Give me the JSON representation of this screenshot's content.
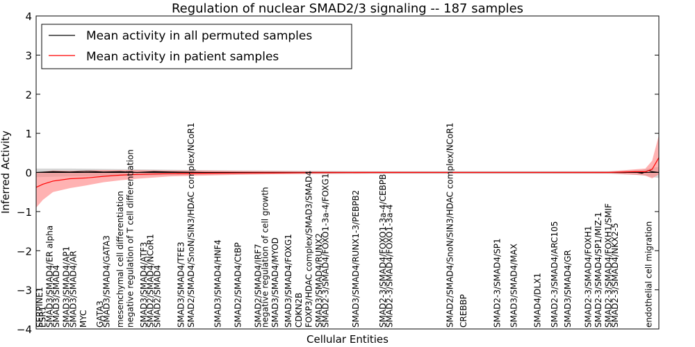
{
  "chart_data": {
    "type": "line",
    "title": "Regulation of nuclear SMAD2/3 signaling -- 187 samples",
    "xlabel": "Cellular Entities",
    "ylabel": "Inferred Activity",
    "ylim": [
      -4,
      4
    ],
    "yticks": [
      -4,
      -3,
      -2,
      -1,
      0,
      1,
      2,
      3,
      4
    ],
    "ytick_labels": [
      "−4",
      "−3",
      "−2",
      "−1",
      "0",
      "1",
      "2",
      "3",
      "4"
    ],
    "grid": false,
    "legend_position": "upper-left",
    "legend": [
      {
        "name": "Mean activity in all permuted samples",
        "color": "#000000"
      },
      {
        "name": "Mean activity in patient samples",
        "color": "#ff0000"
      }
    ],
    "colors": {
      "permuted": "#000000",
      "patient": "#ff0000",
      "permuted_band": "#c8c8c8",
      "patient_band": "#ff7f7f"
    },
    "entity_count": 186,
    "series": [
      {
        "name": "Mean activity in patient samples",
        "points": [
          [
            0,
            -0.38
          ],
          [
            2,
            -0.3
          ],
          [
            5,
            -0.22
          ],
          [
            10,
            -0.16
          ],
          [
            15,
            -0.14
          ],
          [
            20,
            -0.1
          ],
          [
            25,
            -0.07
          ],
          [
            30,
            -0.05
          ],
          [
            40,
            -0.03
          ],
          [
            50,
            -0.02
          ],
          [
            60,
            -0.015
          ],
          [
            70,
            -0.01
          ],
          [
            80,
            -0.005
          ],
          [
            100,
            0
          ],
          [
            120,
            0
          ],
          [
            150,
            0
          ],
          [
            170,
            0
          ],
          [
            178,
            0.02
          ],
          [
            181,
            0.02
          ],
          [
            183,
            0.08
          ],
          [
            185,
            0.38
          ]
        ],
        "band_upper": [
          [
            0,
            0.0
          ],
          [
            2,
            0.02
          ],
          [
            5,
            0.05
          ],
          [
            10,
            0.04
          ],
          [
            15,
            0.05
          ],
          [
            20,
            0.06
          ],
          [
            25,
            0.06
          ],
          [
            30,
            0.06
          ],
          [
            40,
            0.05
          ],
          [
            50,
            0.05
          ],
          [
            60,
            0.04
          ],
          [
            70,
            0.035
          ],
          [
            80,
            0.03
          ],
          [
            100,
            0.025
          ],
          [
            120,
            0.02
          ],
          [
            150,
            0.02
          ],
          [
            170,
            0.025
          ],
          [
            178,
            0.08
          ],
          [
            181,
            0.1
          ],
          [
            183,
            0.3
          ],
          [
            185,
            0.95
          ]
        ],
        "band_lower": [
          [
            0,
            -0.9
          ],
          [
            2,
            -0.7
          ],
          [
            5,
            -0.5
          ],
          [
            10,
            -0.4
          ],
          [
            15,
            -0.33
          ],
          [
            20,
            -0.25
          ],
          [
            25,
            -0.2
          ],
          [
            30,
            -0.16
          ],
          [
            40,
            -0.1
          ],
          [
            50,
            -0.08
          ],
          [
            60,
            -0.06
          ],
          [
            70,
            -0.045
          ],
          [
            80,
            -0.035
          ],
          [
            100,
            -0.025
          ],
          [
            120,
            -0.02
          ],
          [
            150,
            -0.02
          ],
          [
            170,
            -0.025
          ],
          [
            178,
            -0.06
          ],
          [
            181,
            -0.08
          ],
          [
            183,
            -0.15
          ],
          [
            185,
            -0.05
          ]
        ]
      },
      {
        "name": "Mean activity in all permuted samples",
        "points": [
          [
            0,
            0.0
          ],
          [
            5,
            0.02
          ],
          [
            10,
            0.01
          ],
          [
            15,
            0.03
          ],
          [
            20,
            0.01
          ],
          [
            25,
            0.02
          ],
          [
            30,
            0.0
          ],
          [
            35,
            0.02
          ],
          [
            40,
            0.01
          ],
          [
            50,
            0.0
          ],
          [
            60,
            0.0
          ],
          [
            70,
            0.0
          ],
          [
            100,
            0.0
          ],
          [
            150,
            0.0
          ],
          [
            175,
            0.0
          ],
          [
            178,
            0.01
          ],
          [
            180,
            -0.02
          ],
          [
            182,
            0.05
          ],
          [
            183,
            0.02
          ],
          [
            185,
            0.0
          ]
        ],
        "band_upper": [
          [
            0,
            0.1
          ],
          [
            10,
            0.1
          ],
          [
            20,
            0.09
          ],
          [
            30,
            0.08
          ],
          [
            40,
            0.07
          ],
          [
            60,
            0.05
          ],
          [
            80,
            0.04
          ],
          [
            100,
            0.03
          ],
          [
            150,
            0.03
          ],
          [
            170,
            0.03
          ],
          [
            180,
            0.06
          ],
          [
            183,
            0.12
          ],
          [
            185,
            0.14
          ]
        ],
        "band_lower": [
          [
            0,
            -0.12
          ],
          [
            10,
            -0.1
          ],
          [
            20,
            -0.09
          ],
          [
            30,
            -0.08
          ],
          [
            40,
            -0.07
          ],
          [
            60,
            -0.05
          ],
          [
            80,
            -0.04
          ],
          [
            100,
            -0.03
          ],
          [
            150,
            -0.03
          ],
          [
            170,
            -0.03
          ],
          [
            180,
            -0.07
          ],
          [
            183,
            -0.12
          ],
          [
            185,
            -0.14
          ]
        ]
      }
    ],
    "annotations": [
      {
        "text": "SERPINE1",
        "x": 1
      },
      {
        "text": "ESR1",
        "x": 2
      },
      {
        "text": "SMAD3/SMAD4/ER alpha",
        "x": 4
      },
      {
        "text": "SMAD3/SMAD4",
        "x": 6
      },
      {
        "text": "SMAD3/SMAD4/AP1",
        "x": 9
      },
      {
        "text": "SMAD3/SMAD4/AR",
        "x": 11
      },
      {
        "text": "MYC",
        "x": 14
      },
      {
        "text": "GATA3",
        "x": 19
      },
      {
        "text": "SMAD3/SMAD4/GATA3",
        "x": 21
      },
      {
        "text": "mesenchymal cell differentiation",
        "x": 25
      },
      {
        "text": "negative regulation of T cell differentiation",
        "x": 28
      },
      {
        "text": "SMAD3/SMAD4/ATF3",
        "x": 32
      },
      {
        "text": "SMAD2/SMAD4/NCoR1",
        "x": 34
      },
      {
        "text": "SMAD2/SMAD4",
        "x": 36
      },
      {
        "text": "SMAD3/SMAD4/TFE3",
        "x": 43
      },
      {
        "text": "SMAD2/SMAD4/SnoN/SIN3/HDAC complex/NCoR1",
        "x": 46
      },
      {
        "text": "SMAD3/SMAD4/HNF4",
        "x": 54
      },
      {
        "text": "SMAD2/SMAD4/CtBP",
        "x": 60
      },
      {
        "text": "SMAD2/SMAD4/IRF7",
        "x": 66
      },
      {
        "text": "negative regulation of cell growth",
        "x": 68
      },
      {
        "text": "SMAD3/SMAD4/MYOD",
        "x": 71
      },
      {
        "text": "SMAD3/SMAD4/FOXG1",
        "x": 75
      },
      {
        "text": "CDKN2B",
        "x": 78
      },
      {
        "text": "FOXP3/HDAC complex/SMAD3/SMAD4",
        "x": 81
      },
      {
        "text": "SMAD3/SMAD4/RUNX2",
        "x": 84
      },
      {
        "text": "SMAD2-3/SMAD4/FOXO1-3a-4/FOXG1",
        "x": 86
      },
      {
        "text": "SMAD3/SMAD4/RUNX1-3/PEBPB2",
        "x": 95
      },
      {
        "text": "SMAD2-3/SMAD4/FOXO1-3a-4/CEBPB",
        "x": 103
      },
      {
        "text": "SMAD2-3/SMAD4/FOXO1-3a-4",
        "x": 105
      },
      {
        "text": "SMAD2/SMAD4/SnoN/SIN3/HDAC complex/NCoR1",
        "x": 123
      },
      {
        "text": "CREBBP",
        "x": 127
      },
      {
        "text": "SMAD2-3/SMAD4/SP1",
        "x": 137
      },
      {
        "text": "SMAD3/SMAD4/MAX",
        "x": 142
      },
      {
        "text": "SMAD4/DLX1",
        "x": 149
      },
      {
        "text": "SMAD2-3/SMAD4/ARC105",
        "x": 154
      },
      {
        "text": "SMAD3/SMAD4/GR",
        "x": 158
      },
      {
        "text": "SMAD2-3/SMAD4/FOXH1",
        "x": 164
      },
      {
        "text": "SMAD2-3/SMAD4/SP1/MIZ-1",
        "x": 167
      },
      {
        "text": "SMAD2-3/SMAD4/FOXH1/SMIF",
        "x": 170
      },
      {
        "text": "SMAD2-3/SMAD4/NKX2-5",
        "x": 172
      },
      {
        "text": "endothelial cell migration",
        "x": 182
      }
    ]
  }
}
